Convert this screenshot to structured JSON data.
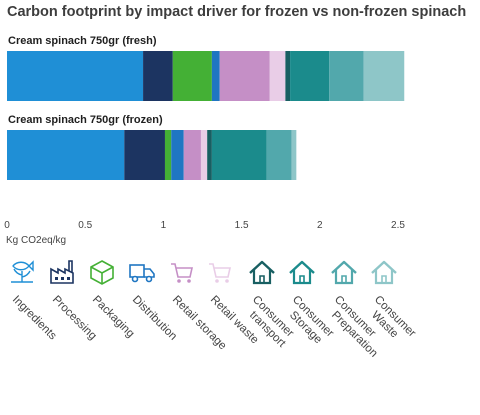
{
  "title": "Carbon footprint by impact driver for frozen vs non-frozen spinach",
  "chart_data": {
    "type": "bar",
    "orientation": "horizontal",
    "stacked": true,
    "unit": "Kg CO2eq/kg",
    "xlim": [
      0,
      2.5
    ],
    "xticks": [
      {
        "value": 0,
        "label": "0"
      },
      {
        "value": 0.5,
        "label": "0.5"
      },
      {
        "value": 1,
        "label": "1"
      },
      {
        "value": 1.5,
        "label": "1.5"
      },
      {
        "value": 2,
        "label": "2"
      },
      {
        "value": 2.5,
        "label": "2.5"
      }
    ],
    "categories": [
      "Cream spinach 750gr (fresh)",
      "Cream spinach 750gr (frozen)"
    ],
    "series": [
      {
        "name": "Ingredients",
        "color": "#1f8fd6",
        "icon": "ingredients-icon",
        "values": [
          0.87,
          0.75
        ]
      },
      {
        "name": "Processing",
        "color": "#1c3461",
        "icon": "factory-icon",
        "values": [
          0.19,
          0.26
        ]
      },
      {
        "name": "Packaging",
        "color": "#44b035",
        "icon": "package-icon",
        "values": [
          0.25,
          0.04
        ]
      },
      {
        "name": "Distribution",
        "color": "#1f76c2",
        "icon": "truck-icon",
        "values": [
          0.05,
          0.08
        ]
      },
      {
        "name": "Retail storage",
        "color": "#c58fc6",
        "icon": "shopping-cart-icon",
        "values": [
          0.32,
          0.11
        ]
      },
      {
        "name": "Retail waste",
        "color": "#e9cde7",
        "icon": "shopping-cart-light-icon",
        "values": [
          0.1,
          0.04
        ]
      },
      {
        "name": "Consumer transport",
        "color": "#185f62",
        "icon": "house-icon",
        "values": [
          0.03,
          0.03
        ]
      },
      {
        "name": "Consumer Storage",
        "color": "#1b8b8c",
        "icon": "house-icon",
        "values": [
          0.25,
          0.35
        ]
      },
      {
        "name": "Consumer Preparation",
        "color": "#52a8ac",
        "icon": "house-icon",
        "values": [
          0.22,
          0.16
        ]
      },
      {
        "name": "Consumer Waste",
        "color": "#8ec6c8",
        "icon": "house-light-icon",
        "values": [
          0.26,
          0.03
        ]
      }
    ]
  }
}
